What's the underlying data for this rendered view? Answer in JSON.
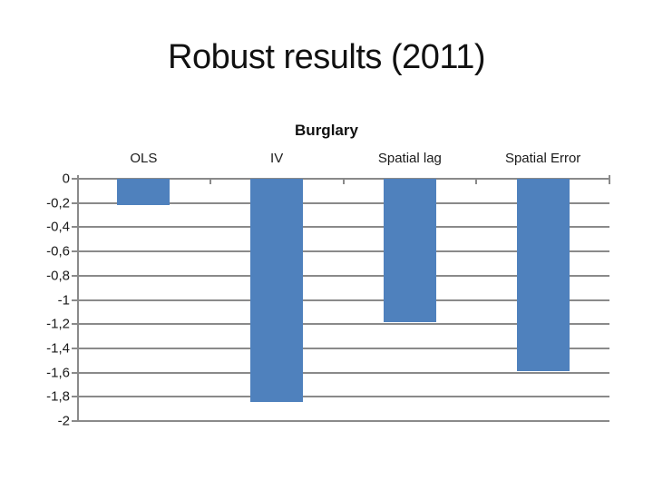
{
  "slide": {
    "title": "Robust results (2011)"
  },
  "chart": {
    "colors": {
      "bar": "#4f81bd",
      "grid": "#8a8a8a",
      "axis": "#8a8a8a",
      "text": "#1a1a1a"
    }
  },
  "chart_data": {
    "type": "bar",
    "title": "Burglary",
    "categories": [
      "OLS",
      "IV",
      "Spatial lag",
      "Spatial Error"
    ],
    "values": [
      -0.22,
      -1.84,
      -1.18,
      -1.59
    ],
    "y_ticks": [
      "0",
      "-0,2",
      "-0,4",
      "-0,6",
      "-0,8",
      "-1",
      "-1,2",
      "-1,4",
      "-1,6",
      "-1,8",
      "-2"
    ],
    "ylim": [
      -2,
      0
    ],
    "xlabel": "",
    "ylabel": "",
    "grid": true,
    "legend": false,
    "decimal_separator": ",",
    "bar_orientation": "vertical-negative",
    "category_axis_position": "top"
  }
}
